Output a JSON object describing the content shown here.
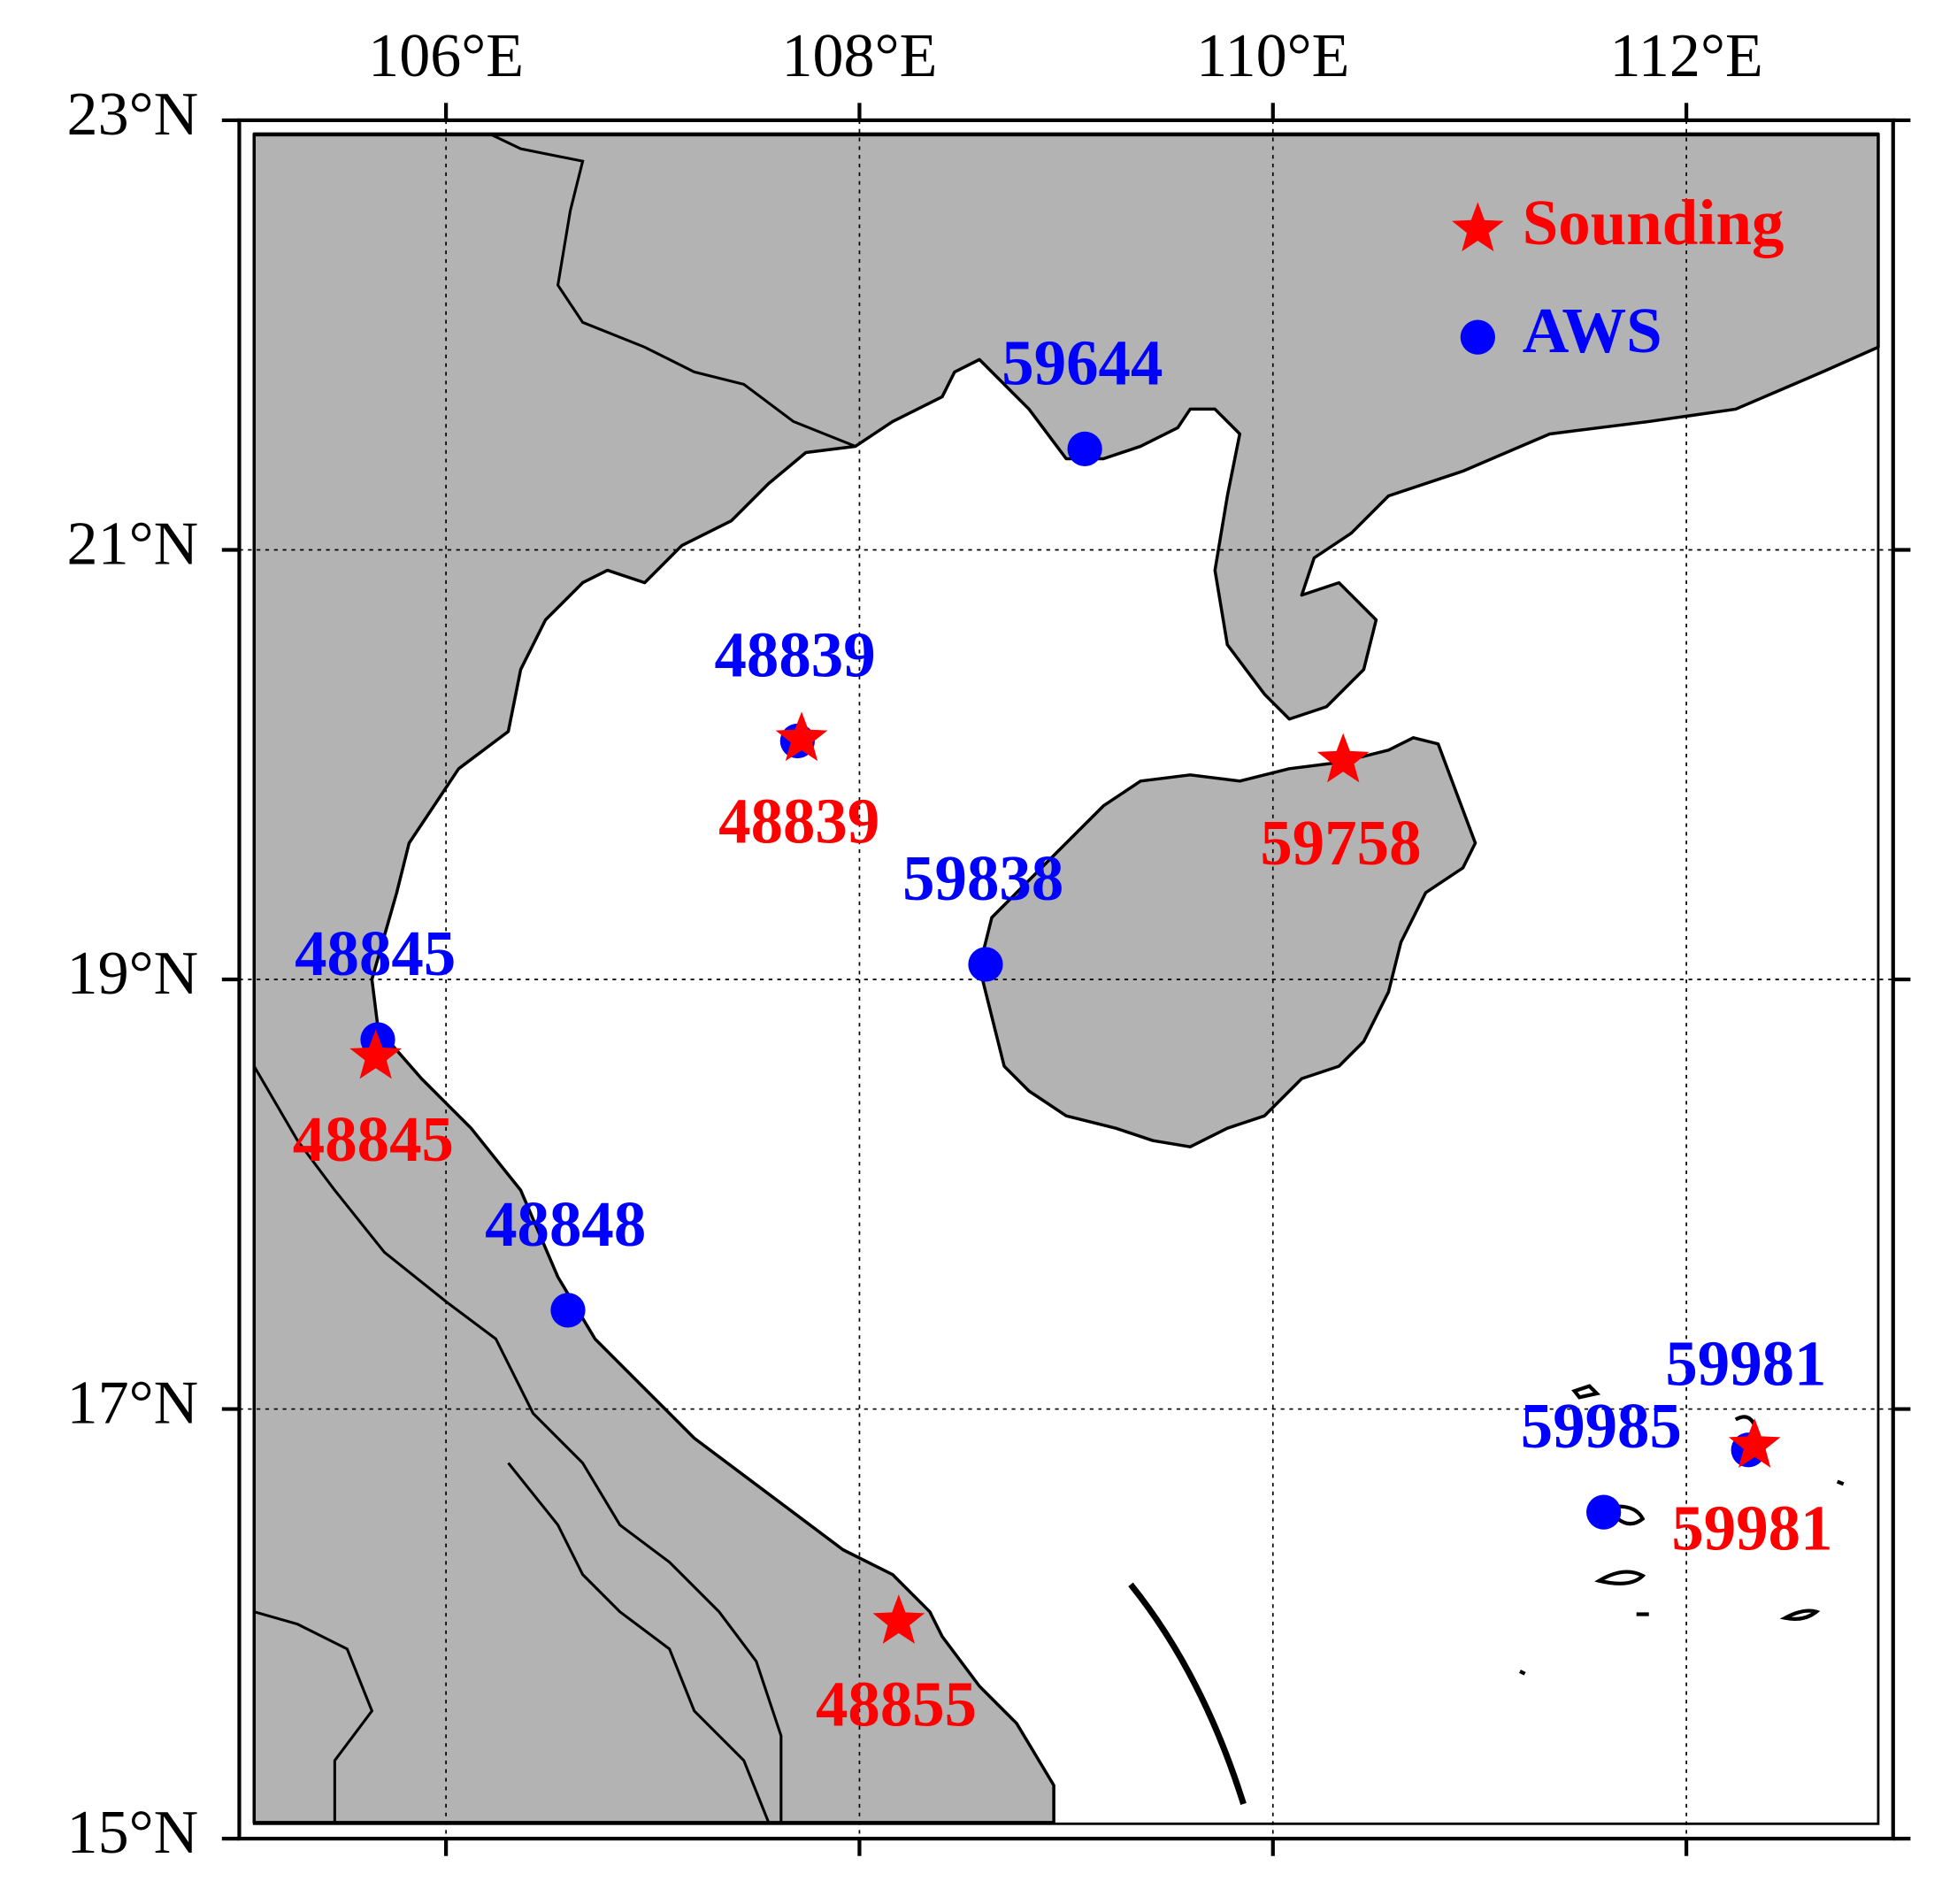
{
  "map_data": {
    "type": "station_map",
    "xlim": [
      105,
      113
    ],
    "ylim": [
      15,
      23
    ],
    "xticks": [
      {
        "value": 106,
        "label": "106°E"
      },
      {
        "value": 108,
        "label": "108°E"
      },
      {
        "value": 110,
        "label": "110°E"
      },
      {
        "value": 112,
        "label": "112°E"
      }
    ],
    "yticks": [
      {
        "value": 15,
        "label": "15°N"
      },
      {
        "value": 17,
        "label": "17°N"
      },
      {
        "value": 19,
        "label": "19°N"
      },
      {
        "value": 21,
        "label": "21°N"
      },
      {
        "value": 23,
        "label": "23°N"
      }
    ],
    "grid": true,
    "legend": "upper right",
    "series": [
      {
        "name": "Sounding",
        "color": "#ff0000",
        "marker": "star",
        "points": [
          {
            "label": "48839",
            "lon": 107.72,
            "lat": 20.12
          },
          {
            "label": "59758",
            "lon": 110.34,
            "lat": 20.02
          },
          {
            "label": "48845",
            "lon": 105.66,
            "lat": 18.64
          },
          {
            "label": "48855",
            "lon": 108.19,
            "lat": 16.01
          },
          {
            "label": "59981",
            "lon": 112.33,
            "lat": 16.83
          }
        ]
      },
      {
        "name": "AWS",
        "color": "#0000ff",
        "marker": "circle",
        "points": [
          {
            "label": "59644",
            "lon": 109.09,
            "lat": 21.47
          },
          {
            "label": "48839",
            "lon": 107.7,
            "lat": 20.11
          },
          {
            "label": "59838",
            "lon": 108.61,
            "lat": 19.07
          },
          {
            "label": "48845",
            "lon": 105.67,
            "lat": 18.72
          },
          {
            "label": "48848",
            "lon": 106.59,
            "lat": 17.46
          },
          {
            "label": "59981",
            "lon": 112.3,
            "lat": 16.81
          },
          {
            "label": "59985",
            "lon": 111.6,
            "lat": 16.52
          }
        ]
      }
    ]
  }
}
